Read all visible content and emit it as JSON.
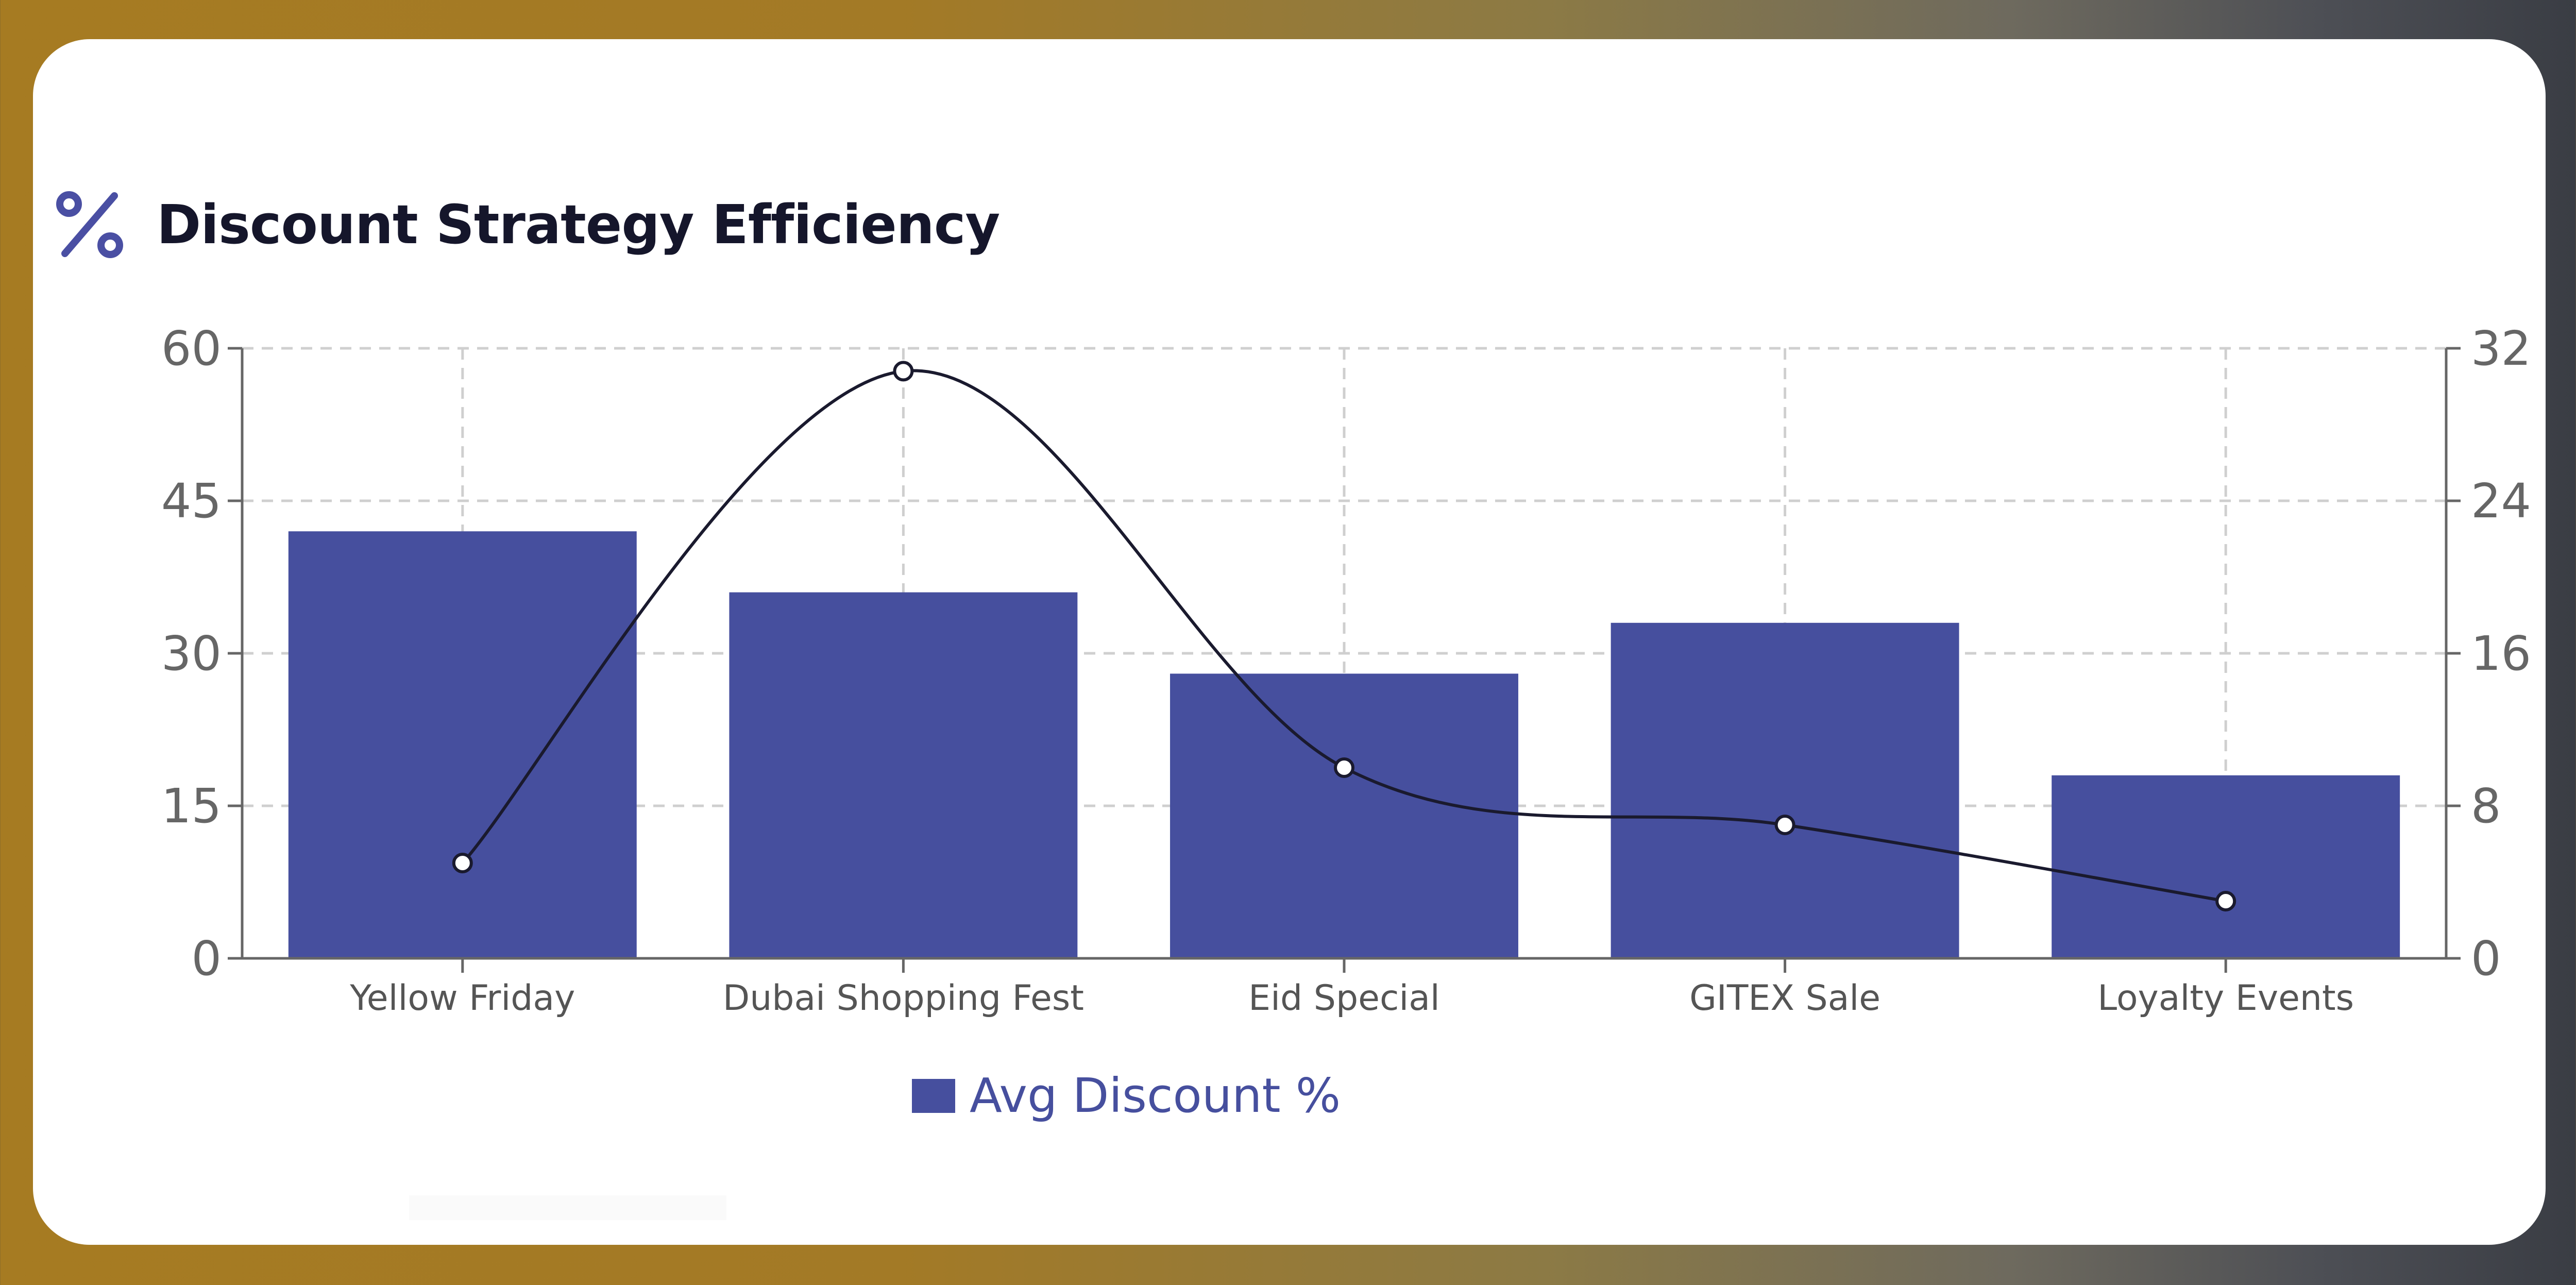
{
  "title": "Discount Strategy Efficiency",
  "title_icon": "percent-icon",
  "colors": {
    "bar": "#464f9e",
    "line": "#1a1a2e",
    "title": "#15162b",
    "icon": "#4a4fa3",
    "grid": "#cfcfcf",
    "axis": "#666666"
  },
  "chart_data": {
    "type": "bar",
    "categories": [
      "Yellow Friday",
      "Dubai Shopping Fest",
      "Eid Special",
      "GITEX Sale",
      "Loyalty Events"
    ],
    "series": [
      {
        "name": "Avg Discount %",
        "type": "bar",
        "axis": "left",
        "values": [
          42,
          36,
          28,
          33,
          18
        ]
      },
      {
        "type": "line",
        "axis": "right",
        "smooth": true,
        "values": [
          5,
          30.8,
          10,
          7,
          3
        ]
      }
    ],
    "y_left": {
      "min": 0,
      "max": 60,
      "ticks": [
        0,
        15,
        30,
        45,
        60
      ]
    },
    "y_right": {
      "min": 0,
      "max": 32,
      "ticks": [
        0,
        8,
        16,
        24,
        32
      ]
    },
    "grid": true,
    "legend": {
      "position": "bottom",
      "items": [
        "Avg Discount %"
      ]
    }
  }
}
